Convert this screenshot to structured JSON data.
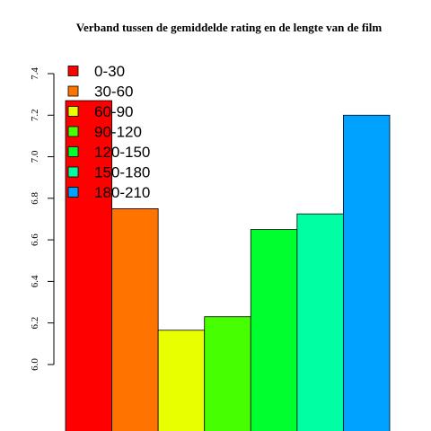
{
  "chart_data": {
    "type": "bar",
    "title": "Verband tussen de gemiddelde rating en de lengte van de film",
    "xlabel": "",
    "ylabel": "",
    "categories": [
      "0-30",
      "30-60",
      "60-90",
      "90-120",
      "120-150",
      "150-180",
      "180-210"
    ],
    "values": [
      7.27,
      6.75,
      6.165,
      6.23,
      6.65,
      6.725,
      7.2
    ],
    "colors": [
      "#FF0000",
      "#FF7400",
      "#E8FF00",
      "#46FF00",
      "#00FF2E",
      "#00FFA2",
      "#00A2FF"
    ],
    "ylim": [
      5.68,
      7.4
    ],
    "yticks": [
      "6.0",
      "6.2",
      "6.4",
      "6.6",
      "6.8",
      "7.0",
      "7.2",
      "7.4"
    ],
    "legend": {
      "placement": "top-left",
      "entries": [
        "0-30",
        "30-60",
        "60-90",
        "90-120",
        "120-150",
        "150-180",
        "180-210"
      ]
    },
    "grid": false
  }
}
